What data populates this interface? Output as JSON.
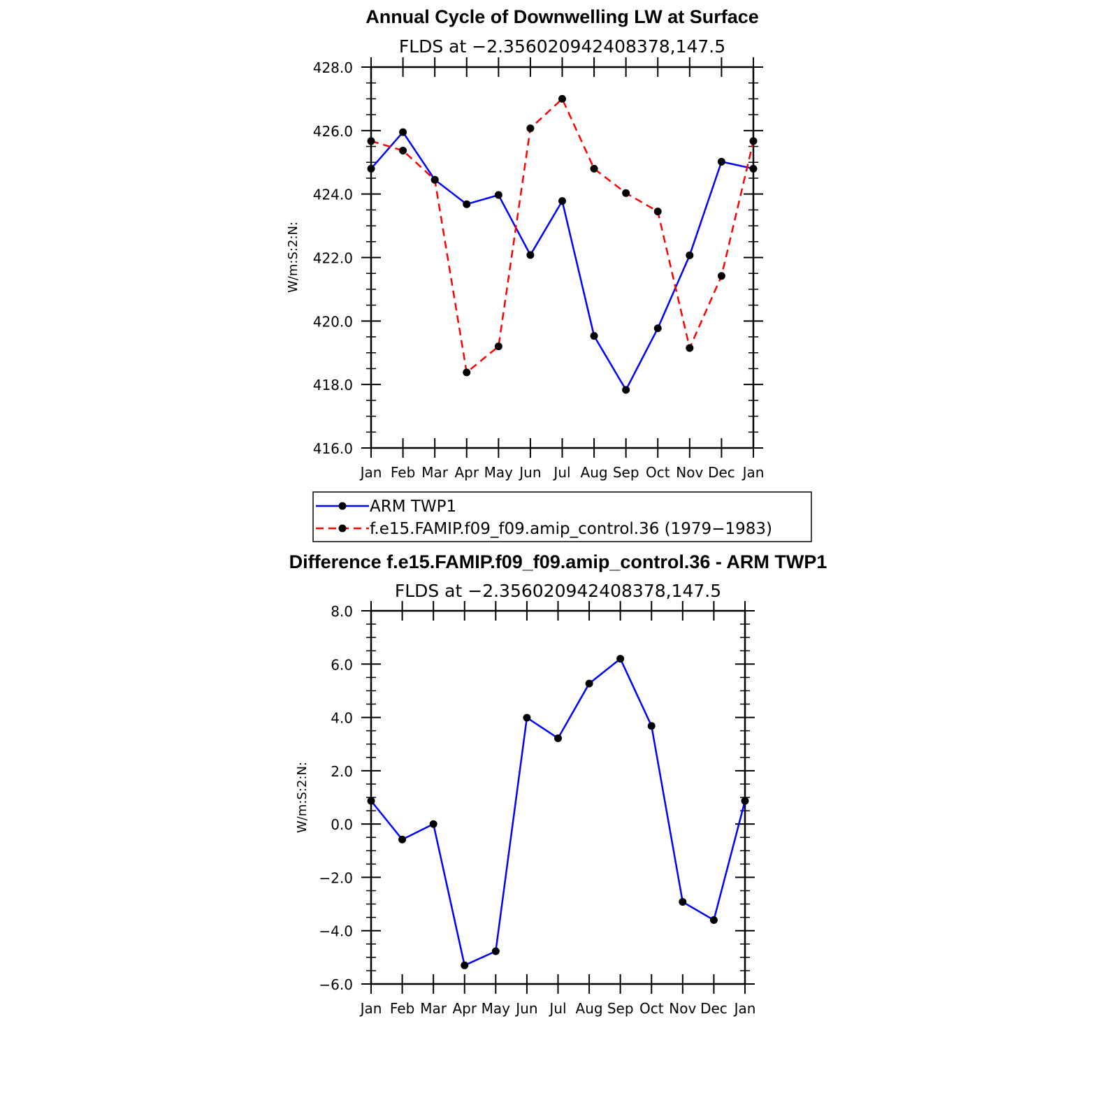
{
  "chart_data": [
    {
      "type": "line",
      "title": "Annual Cycle of Downwelling LW at Surface",
      "subtitle": "FLDS at −2.356020942408378,147.5",
      "ylabel": "W/m:S:2:N:",
      "ylim": [
        416,
        428
      ],
      "yticks": [
        "416.0",
        "418.0",
        "420.0",
        "422.0",
        "424.0",
        "426.0",
        "428.0"
      ],
      "categories": [
        "Jan",
        "Feb",
        "Mar",
        "Apr",
        "May",
        "Jun",
        "Jul",
        "Aug",
        "Sep",
        "Oct",
        "Nov",
        "Dec",
        "Jan"
      ],
      "series": [
        {
          "name": "ARM TWP1",
          "color": "#0000ff",
          "dash": "solid",
          "values": [
            424.8,
            425.95,
            424.45,
            423.68,
            423.97,
            422.08,
            423.78,
            419.53,
            417.83,
            419.77,
            422.07,
            425.02,
            424.8
          ]
        },
        {
          "name": "f.e15.FAMIP.f09_f09.amip_control.36 (1979−1983)",
          "color": "#ff0000",
          "dash": "dashed",
          "values": [
            425.67,
            425.37,
            424.45,
            418.38,
            419.2,
            426.07,
            427.0,
            424.8,
            424.03,
            423.45,
            419.15,
            421.42,
            425.67
          ]
        }
      ],
      "legend_position": "bottom",
      "grid": false
    },
    {
      "type": "line",
      "title": "Difference f.e15.FAMIP.f09_f09.amip_control.36 - ARM TWP1",
      "subtitle": "FLDS at −2.356020942408378,147.5",
      "ylabel": "W/m:S:2:N:",
      "ylim": [
        -6,
        8
      ],
      "yticks": [
        "−6.0",
        "−4.0",
        "−2.0",
        "0.0",
        "2.0",
        "4.0",
        "6.0",
        "8.0"
      ],
      "categories": [
        "Jan",
        "Feb",
        "Mar",
        "Apr",
        "May",
        "Jun",
        "Jul",
        "Aug",
        "Sep",
        "Oct",
        "Nov",
        "Dec",
        "Jan"
      ],
      "series": [
        {
          "color": "#0000ff",
          "dash": "solid",
          "values": [
            0.87,
            -0.58,
            0.0,
            -5.3,
            -4.77,
            3.99,
            3.22,
            5.27,
            6.2,
            3.68,
            -2.92,
            -3.6,
            0.87
          ]
        }
      ],
      "grid": false
    }
  ]
}
